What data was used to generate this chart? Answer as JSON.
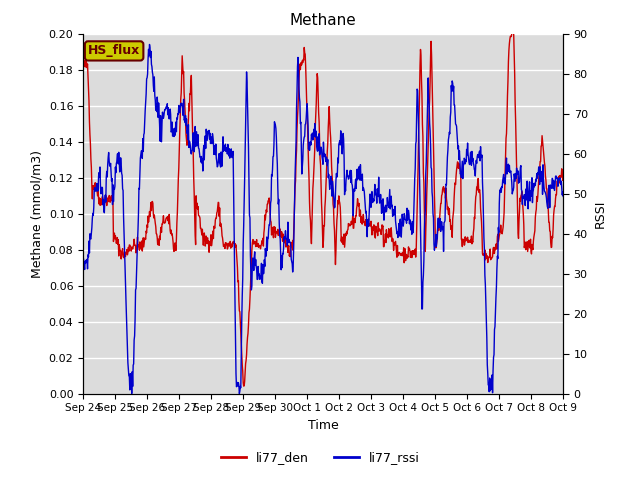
{
  "title": "Methane",
  "xlabel": "Time",
  "ylabel_left": "Methane (mmol/m3)",
  "ylabel_right": "RSSI",
  "legend_label1": "li77_den",
  "legend_label2": "li77_rssi",
  "annotation": "HS_flux",
  "ylim_left": [
    0.0,
    0.2
  ],
  "ylim_right": [
    0,
    90
  ],
  "yticks_left": [
    0.0,
    0.02,
    0.04,
    0.06,
    0.08,
    0.1,
    0.12,
    0.14,
    0.16,
    0.18,
    0.2
  ],
  "yticks_right": [
    0,
    10,
    20,
    30,
    40,
    50,
    60,
    70,
    80,
    90
  ],
  "color_red": "#cc0000",
  "color_blue": "#0000cc",
  "bg_color": "#dcdcdc",
  "grid_color": "#ffffff",
  "annotation_bg": "#cccc00",
  "annotation_fg": "#660000",
  "tick_labels": [
    "Sep 24",
    "Sep 25",
    "Sep 26",
    "Sep 27",
    "Sep 28",
    "Sep 29",
    "Sep 30",
    "Oct 1",
    "Oct 2",
    "Oct 3",
    "Oct 4",
    "Oct 5",
    "Oct 6",
    "Oct 7",
    "Oct 8",
    "Oct 9"
  ],
  "n_points": 1000
}
